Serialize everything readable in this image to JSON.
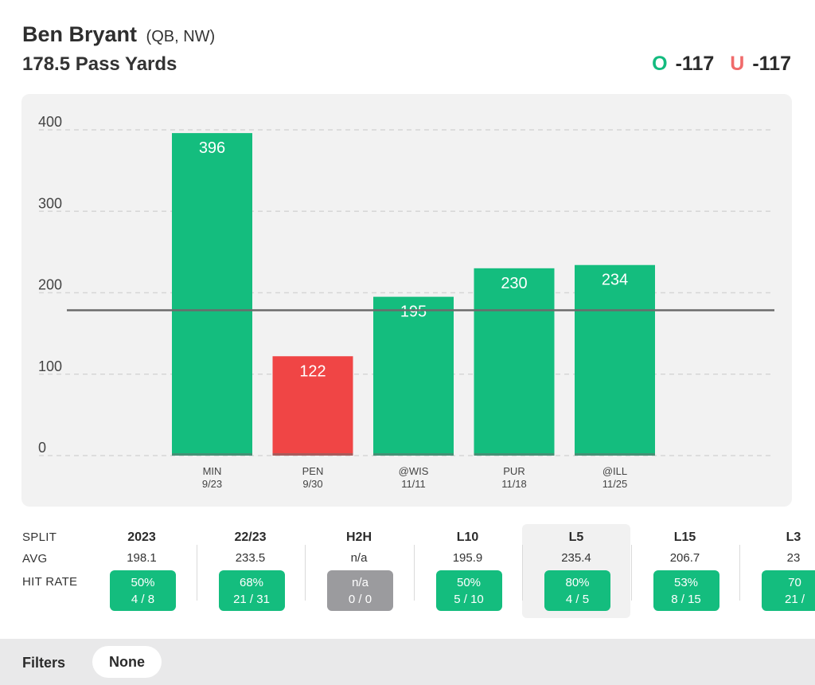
{
  "header": {
    "player_name": "Ben Bryant",
    "player_meta": "(QB, NW)",
    "prop_line": "178.5 Pass Yards",
    "over": {
      "letter": "O",
      "odds": "-117"
    },
    "under": {
      "letter": "U",
      "odds": "-117"
    }
  },
  "colors": {
    "hit": "#14bd7e",
    "miss": "#f04545",
    "push": "#9b9b9e",
    "over": "#13bb7f",
    "under": "#f06b6b"
  },
  "chart_data": {
    "type": "bar",
    "title": "178.5 Pass Yards",
    "categories": [
      "MIN",
      "PEN",
      "@WIS",
      "PUR",
      "@ILL"
    ],
    "dates": [
      "9/23",
      "9/30",
      "11/11",
      "11/18",
      "11/25"
    ],
    "values": [
      396,
      122,
      195,
      230,
      234
    ],
    "result": [
      "over",
      "under",
      "over",
      "over",
      "over"
    ],
    "line": 178.5,
    "ylim": [
      0,
      400
    ],
    "yticks": [
      0,
      100,
      200,
      300,
      400
    ],
    "grid": true,
    "xlabel": "",
    "ylabel": ""
  },
  "splits": {
    "row_labels": {
      "split": "SPLIT",
      "avg": "AVG",
      "hit_rate": "HIT RATE"
    },
    "columns": [
      {
        "label": "2023",
        "avg": "198.1",
        "pct": "50%",
        "record": "4 / 8",
        "state": "green",
        "active": false
      },
      {
        "label": "22/23",
        "avg": "233.5",
        "pct": "68%",
        "record": "21 / 31",
        "state": "green",
        "active": false
      },
      {
        "label": "H2H",
        "avg": "n/a",
        "pct": "n/a",
        "record": "0 / 0",
        "state": "gray",
        "active": false
      },
      {
        "label": "L10",
        "avg": "195.9",
        "pct": "50%",
        "record": "5 / 10",
        "state": "green",
        "active": false
      },
      {
        "label": "L5",
        "avg": "235.4",
        "pct": "80%",
        "record": "4 / 5",
        "state": "green",
        "active": true
      },
      {
        "label": "L15",
        "avg": "206.7",
        "pct": "53%",
        "record": "8 / 15",
        "state": "green",
        "active": false
      },
      {
        "label": "L3",
        "avg": "23",
        "pct": "70",
        "record": "21 /",
        "state": "green",
        "active": false
      }
    ]
  },
  "filters": {
    "label": "Filters",
    "value": "None"
  }
}
